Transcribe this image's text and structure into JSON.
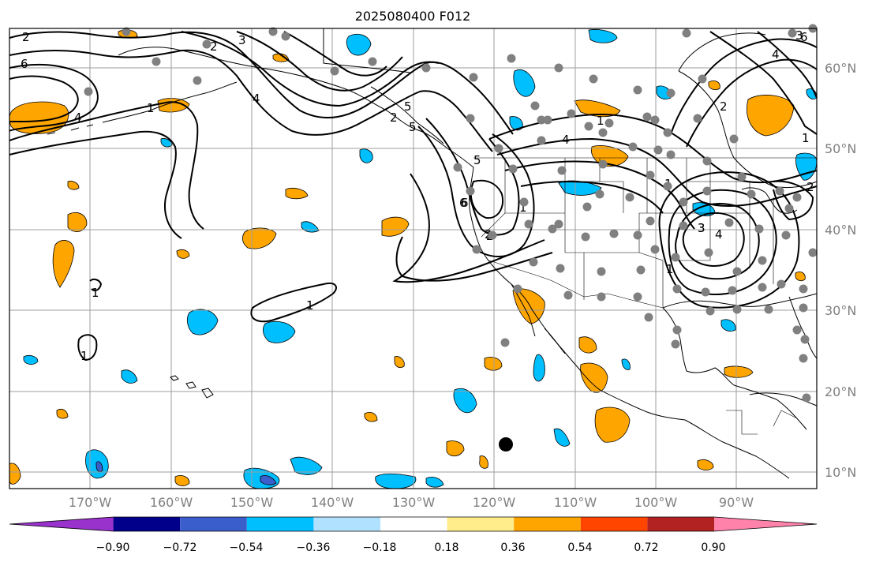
{
  "title": "2025080400 F012",
  "lat_labels": [
    "60°N",
    "50°N",
    "40°N",
    "30°N",
    "20°N",
    "10°N"
  ],
  "lon_labels": [
    "170°W",
    "160°W",
    "150°W",
    "140°W",
    "130°W",
    "120°W",
    "110°W",
    "100°W",
    "90°W"
  ],
  "colorbar": {
    "colors": [
      "#9932cc",
      "#00008b",
      "#3a5fcd",
      "#00bfff",
      "#b0e2ff",
      "#ffffff",
      "#ffec8b",
      "#ffa500",
      "#ff4500",
      "#b22222",
      "#ff82ab"
    ],
    "tick_labels": [
      "−0.90",
      "−0.72",
      "−0.54",
      "−0.36",
      "−0.18",
      "0.18",
      "0.36",
      "0.54",
      "0.72",
      "0.90"
    ]
  },
  "contour_labels": [
    "2",
    "6",
    "3",
    "2",
    "4",
    "4",
    "1",
    "5",
    "5",
    "6",
    "1",
    "4",
    "1",
    "2",
    "6",
    "3",
    "2",
    "1",
    "3",
    "4",
    "1",
    "1",
    "1",
    "1",
    "1",
    "2",
    "3",
    "6",
    "4",
    "2",
    "5",
    "2"
  ],
  "colors": {
    "negative": "#00bfff",
    "positive": "#ffa500",
    "marker": "#808080"
  }
}
